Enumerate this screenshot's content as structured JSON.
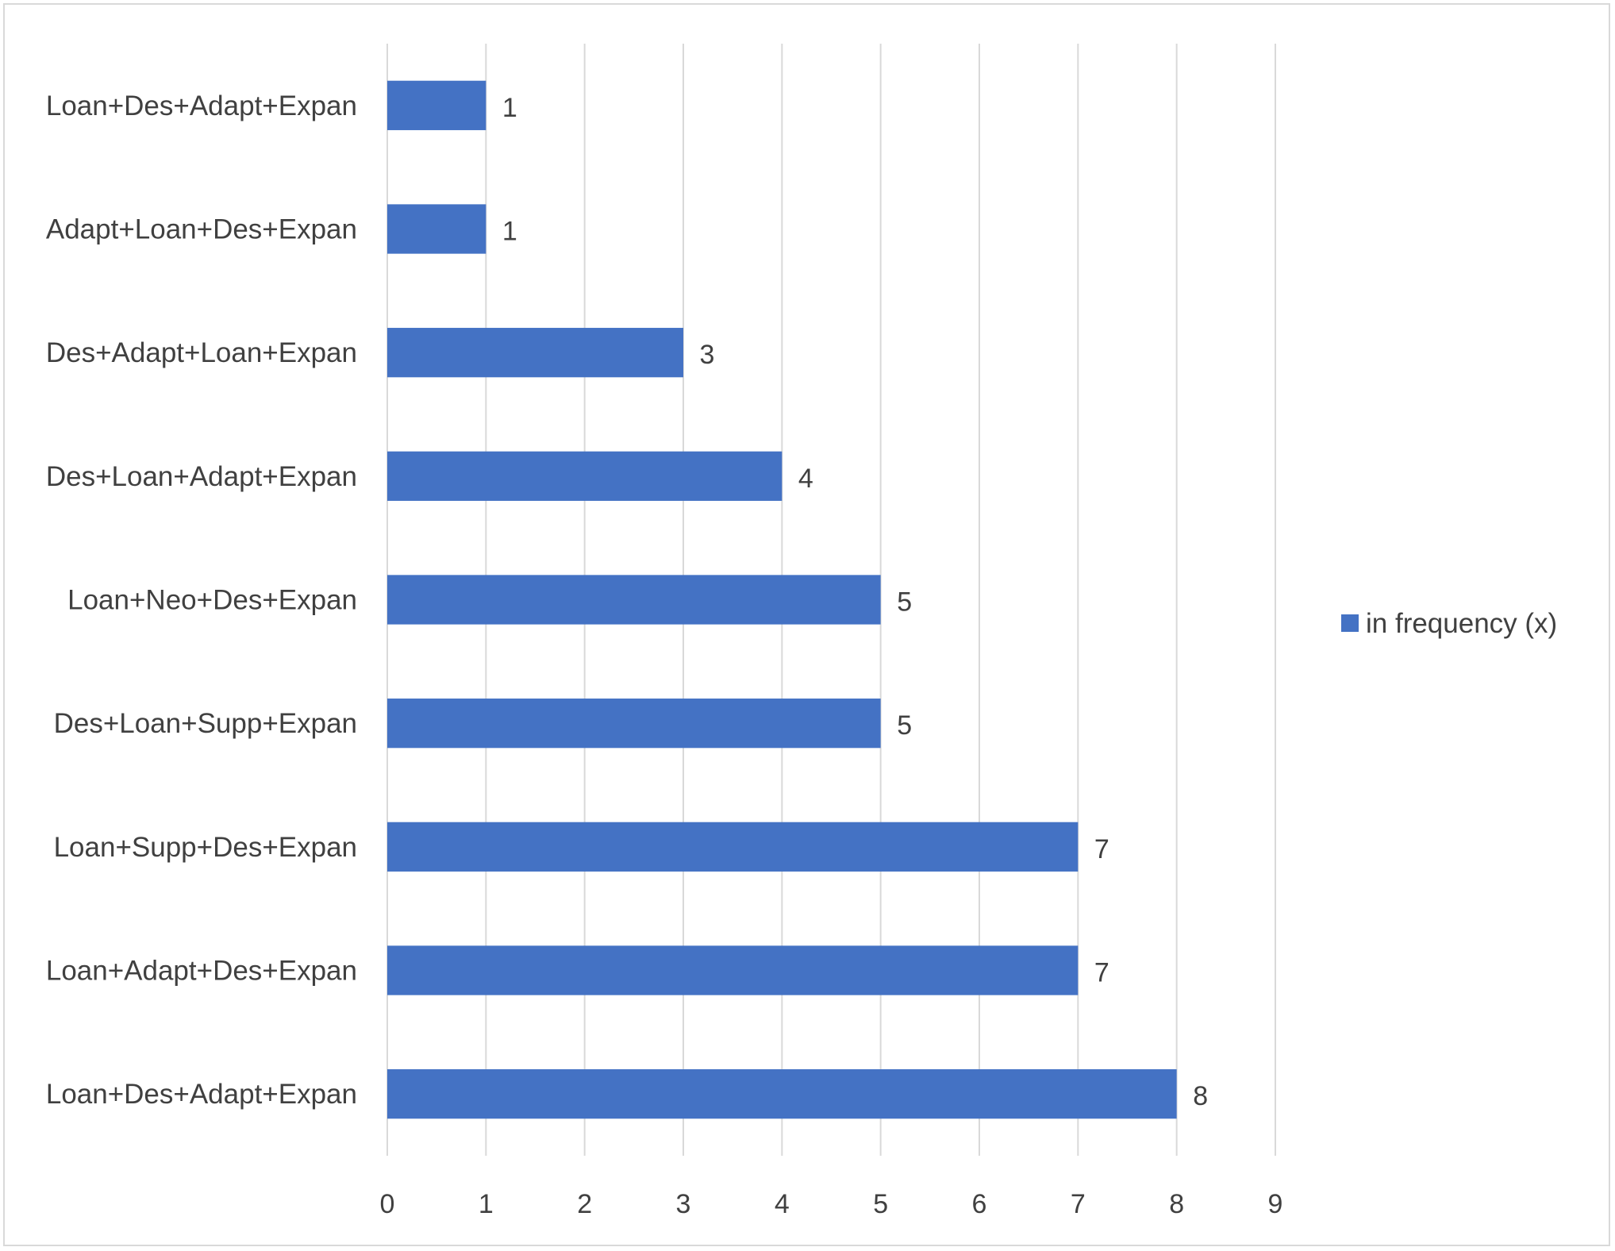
{
  "chart_data": {
    "type": "bar",
    "orientation": "horizontal",
    "categories": [
      "Loan+Des+Adapt+Expan",
      "Adapt+Loan+Des+Expan",
      "Des+Adapt+Loan+Expan",
      "Des+Loan+Adapt+Expan",
      "Loan+Neo+Des+Expan",
      "Des+Loan+Supp+Expan",
      "Loan+Supp+Des+Expan",
      "Loan+Adapt+Des+Expan",
      "Loan+Des+Adapt+Expan"
    ],
    "series": [
      {
        "name": "in frequency (x)",
        "values": [
          1,
          1,
          3,
          4,
          5,
          5,
          7,
          7,
          8
        ],
        "color": "#4472c4"
      }
    ],
    "xlim": [
      0,
      9
    ],
    "xticks": [
      "0",
      "1",
      "2",
      "3",
      "4",
      "5",
      "6",
      "7",
      "8",
      "9"
    ],
    "title": "",
    "xlabel": "",
    "ylabel": "",
    "grid": true,
    "data_labels": true,
    "legend": "right"
  }
}
